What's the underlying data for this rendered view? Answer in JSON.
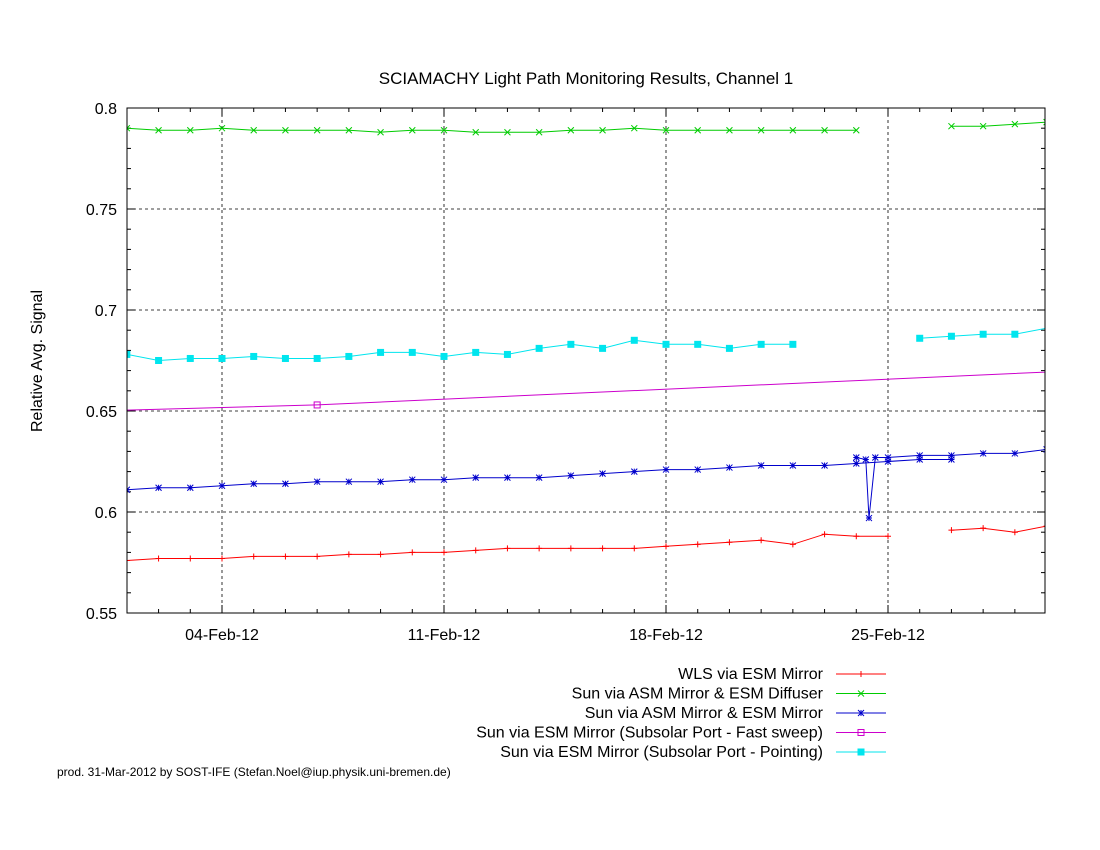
{
  "chart_data": {
    "type": "line",
    "title": "SCIAMACHY Light Path Monitoring Results, Channel 1",
    "xlabel": "",
    "ylabel": "Relative Avg. Signal",
    "xlim": [
      "2012-01-31",
      "2012-03-02"
    ],
    "ylim": [
      0.55,
      0.8
    ],
    "yticks": [
      "0.55",
      "0.6",
      "0.65",
      "0.7",
      "0.75",
      "0.8"
    ],
    "xticks": [
      {
        "date": "2012-02-04",
        "label": "04-Feb-12"
      },
      {
        "date": "2012-02-11",
        "label": "11-Feb-12"
      },
      {
        "date": "2012-02-18",
        "label": "18-Feb-12"
      },
      {
        "date": "2012-02-25",
        "label": "25-Feb-12"
      }
    ],
    "grid": "dashed at major ticks",
    "legend_position": "below plot, right-aligned",
    "series": [
      {
        "name": "WLS via ESM Mirror",
        "color": "#ff0000",
        "marker": "plus",
        "points": [
          [
            "2012-01-31",
            0.576
          ],
          [
            "2012-02-01",
            0.576
          ],
          [
            "2012-02-02",
            0.577
          ],
          [
            "2012-02-03",
            0.577
          ],
          [
            "2012-02-04",
            0.577
          ],
          [
            "2012-02-05",
            0.578
          ],
          [
            "2012-02-06",
            0.578
          ],
          [
            "2012-02-07",
            0.578
          ],
          [
            "2012-02-08",
            0.579
          ],
          [
            "2012-02-09",
            0.579
          ],
          [
            "2012-02-10",
            0.58
          ],
          [
            "2012-02-11",
            0.58
          ],
          [
            "2012-02-12",
            0.581
          ],
          [
            "2012-02-13",
            0.582
          ],
          [
            "2012-02-14",
            0.582
          ],
          [
            "2012-02-15",
            0.582
          ],
          [
            "2012-02-16",
            0.582
          ],
          [
            "2012-02-17",
            0.582
          ],
          [
            "2012-02-18",
            0.583
          ],
          [
            "2012-02-19",
            0.584
          ],
          [
            "2012-02-20",
            0.585
          ],
          [
            "2012-02-21",
            0.586
          ],
          [
            "2012-02-22",
            0.584
          ],
          [
            "2012-02-23",
            0.589
          ],
          [
            "2012-02-24",
            0.588
          ],
          [
            "2012-02-25",
            0.588
          ],
          null,
          [
            "2012-02-27",
            0.591
          ],
          [
            "2012-02-28",
            0.592
          ],
          [
            "2012-02-29",
            0.59
          ],
          [
            "2012-03-01",
            0.593
          ],
          [
            "2012-03-02",
            0.593
          ],
          [
            "2012-03-03",
            0.593
          ]
        ]
      },
      {
        "name": "Sun via ASM Mirror & ESM Diffuser",
        "color": "#00cc00",
        "marker": "cross",
        "points": [
          [
            "2012-01-31",
            0.79
          ],
          [
            "2012-02-01",
            0.79
          ],
          [
            "2012-02-02",
            0.789
          ],
          [
            "2012-02-03",
            0.789
          ],
          [
            "2012-02-04",
            0.79
          ],
          [
            "2012-02-05",
            0.789
          ],
          [
            "2012-02-06",
            0.789
          ],
          [
            "2012-02-07",
            0.789
          ],
          [
            "2012-02-08",
            0.789
          ],
          [
            "2012-02-09",
            0.788
          ],
          [
            "2012-02-10",
            0.789
          ],
          [
            "2012-02-11",
            0.789
          ],
          [
            "2012-02-12",
            0.788
          ],
          [
            "2012-02-13",
            0.788
          ],
          [
            "2012-02-14",
            0.788
          ],
          [
            "2012-02-15",
            0.789
          ],
          [
            "2012-02-16",
            0.789
          ],
          [
            "2012-02-17",
            0.79
          ],
          [
            "2012-02-18",
            0.789
          ],
          [
            "2012-02-19",
            0.789
          ],
          [
            "2012-02-20",
            0.789
          ],
          [
            "2012-02-21",
            0.789
          ],
          [
            "2012-02-22",
            0.789
          ],
          [
            "2012-02-23",
            0.789
          ],
          [
            "2012-02-24",
            0.789
          ],
          null,
          [
            "2012-02-27",
            0.791
          ],
          [
            "2012-02-28",
            0.791
          ],
          [
            "2012-02-29",
            0.792
          ],
          [
            "2012-03-01",
            0.793
          ],
          [
            "2012-03-02",
            0.793
          ],
          [
            "2012-03-03",
            0.792
          ]
        ]
      },
      {
        "name": "Sun via ASM Mirror & ESM Mirror",
        "color": "#0000cc",
        "marker": "star",
        "points": [
          [
            "2012-01-31",
            0.611
          ],
          [
            "2012-02-01",
            0.611
          ],
          [
            "2012-02-02",
            0.612
          ],
          [
            "2012-02-03",
            0.612
          ],
          [
            "2012-02-04",
            0.613
          ],
          [
            "2012-02-05",
            0.614
          ],
          [
            "2012-02-06",
            0.614
          ],
          [
            "2012-02-07",
            0.615
          ],
          [
            "2012-02-08",
            0.615
          ],
          [
            "2012-02-09",
            0.615
          ],
          [
            "2012-02-10",
            0.616
          ],
          [
            "2012-02-11",
            0.616
          ],
          [
            "2012-02-12",
            0.617
          ],
          [
            "2012-02-13",
            0.617
          ],
          [
            "2012-02-14",
            0.617
          ],
          [
            "2012-02-15",
            0.618
          ],
          [
            "2012-02-16",
            0.619
          ],
          [
            "2012-02-17",
            0.62
          ],
          [
            "2012-02-18",
            0.621
          ],
          [
            "2012-02-19",
            0.621
          ],
          [
            "2012-02-20",
            0.622
          ],
          [
            "2012-02-21",
            0.623
          ],
          [
            "2012-02-22",
            0.623
          ],
          [
            "2012-02-23",
            0.623
          ],
          [
            "2012-02-24",
            0.624
          ],
          [
            "2012-02-25",
            0.625
          ],
          [
            "2012-02-26",
            0.626
          ],
          [
            "2012-02-27",
            0.626
          ],
          null,
          [
            "2012-02-24",
            0.627
          ],
          [
            "2012-02-24.3",
            0.626
          ],
          [
            "2012-02-24.4",
            0.597
          ],
          [
            "2012-02-24.6",
            0.627
          ],
          [
            "2012-02-25",
            0.627
          ],
          [
            "2012-02-26",
            0.628
          ],
          [
            "2012-02-27",
            0.628
          ],
          [
            "2012-02-28",
            0.629
          ],
          [
            "2012-02-29",
            0.629
          ],
          [
            "2012-03-01",
            0.631
          ],
          [
            "2012-03-02",
            0.632
          ],
          [
            "2012-03-03",
            0.633
          ],
          [
            "2012-03-04",
            0.634
          ]
        ]
      },
      {
        "name": "Sun via ESM Mirror (Subsolar Port - Fast sweep)",
        "color": "#cc00cc",
        "marker": "box",
        "points": [
          [
            "2012-01-31",
            0.65
          ],
          [
            "2012-02-07",
            0.653
          ],
          [
            "2012-03-02",
            0.67
          ]
        ]
      },
      {
        "name": "Sun via ESM Mirror (Subsolar Port - Pointing)",
        "color": "#00e5ee",
        "marker": "filled-box",
        "points": [
          [
            "2012-01-31",
            0.677
          ],
          [
            "2012-02-01",
            0.678
          ],
          [
            "2012-02-02",
            0.675
          ],
          [
            "2012-02-03",
            0.676
          ],
          [
            "2012-02-04",
            0.676
          ],
          [
            "2012-02-05",
            0.677
          ],
          [
            "2012-02-06",
            0.676
          ],
          [
            "2012-02-07",
            0.676
          ],
          [
            "2012-02-08",
            0.677
          ],
          [
            "2012-02-09",
            0.679
          ],
          [
            "2012-02-10",
            0.679
          ],
          [
            "2012-02-11",
            0.677
          ],
          [
            "2012-02-12",
            0.679
          ],
          [
            "2012-02-13",
            0.678
          ],
          [
            "2012-02-14",
            0.681
          ],
          [
            "2012-02-15",
            0.683
          ],
          [
            "2012-02-16",
            0.681
          ],
          [
            "2012-02-17",
            0.685
          ],
          [
            "2012-02-18",
            0.683
          ],
          [
            "2012-02-19",
            0.683
          ],
          [
            "2012-02-20",
            0.681
          ],
          [
            "2012-02-21",
            0.683
          ],
          [
            "2012-02-22",
            0.683
          ],
          null,
          [
            "2012-02-26",
            0.686
          ],
          [
            "2012-02-27",
            0.687
          ],
          [
            "2012-02-28",
            0.688
          ],
          [
            "2012-02-29",
            0.688
          ],
          [
            "2012-03-02",
            0.694
          ]
        ]
      }
    ],
    "credit": "prod. 31-Mar-2012 by SOST-IFE (Stefan.Noel@iup.physik.uni-bremen.de)"
  }
}
